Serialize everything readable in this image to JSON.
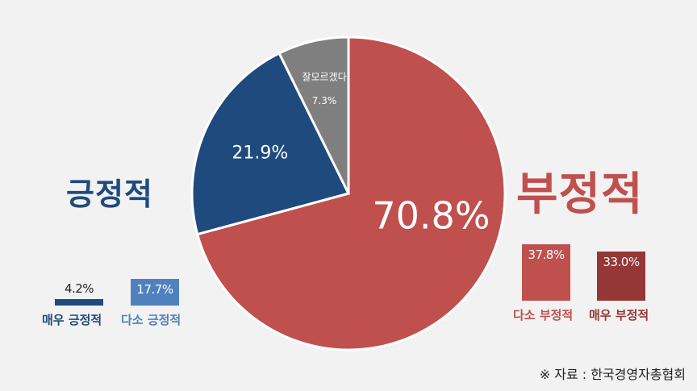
{
  "colors": {
    "strongly_positive": "#1f4a7d",
    "somewhat_positive": "#4f81bd",
    "somewhat_negative": "#c0504d",
    "strongly_negative": "#953735",
    "unknown": "#7f7f7f",
    "background": "#f2f2f2"
  },
  "chart_data": [
    {
      "type": "pie",
      "title": "",
      "slices": [
        {
          "label": "",
          "value": 70.8,
          "value_label": "70.8%",
          "color": "#c0504d"
        },
        {
          "label": "",
          "value": 21.9,
          "value_label": "21.9%",
          "color": "#1f4a7d"
        },
        {
          "label": "잘모르겠다",
          "value": 7.3,
          "value_label": "7.3%",
          "color": "#7f7f7f"
        }
      ]
    },
    {
      "type": "bar",
      "title": "긍정적",
      "categories": [
        "매우 긍정적",
        "다소 긍정적"
      ],
      "values": [
        4.2,
        17.7
      ],
      "value_labels": [
        "4.2%",
        "17.7%"
      ],
      "colors": [
        "#1f4a7d",
        "#4f81bd"
      ]
    },
    {
      "type": "bar",
      "title": "부정적",
      "categories": [
        "다소 부정적",
        "매우 부정적"
      ],
      "values": [
        37.8,
        33.0
      ],
      "value_labels": [
        "37.8%",
        "33.0%"
      ],
      "colors": [
        "#c0504d",
        "#953735"
      ]
    }
  ],
  "source": "※ 자료 : 한국경영자총협회"
}
